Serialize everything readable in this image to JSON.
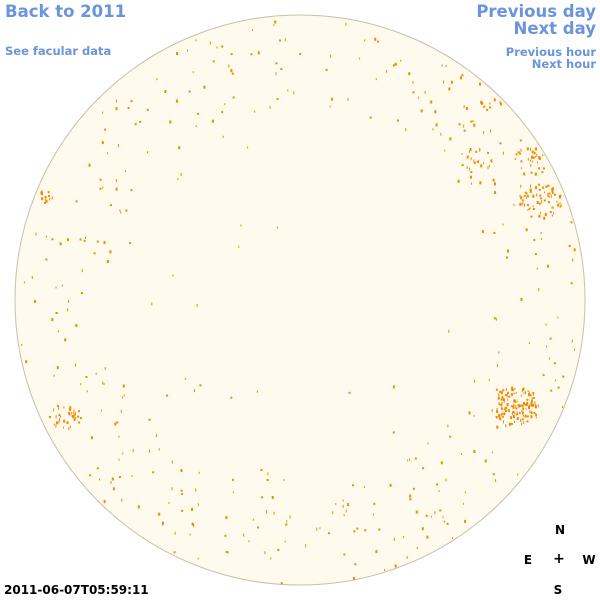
{
  "nav": {
    "back_label": "Back to 2011",
    "facular_label": "See facular data",
    "prev_day_label": "Previous day",
    "next_day_label": "Next day",
    "prev_hour_label": "Previous hour",
    "next_hour_label": "Next hour"
  },
  "compass": {
    "north": "N",
    "east": "E",
    "center": "+",
    "west": "W",
    "south": "S"
  },
  "timestamp": "2011-06-07T05:59:11",
  "colors": {
    "link": "#6a94dc",
    "disc_fill": "#fffaee",
    "disc_border": "#c9bfa8",
    "feature": "#f08a00"
  }
}
